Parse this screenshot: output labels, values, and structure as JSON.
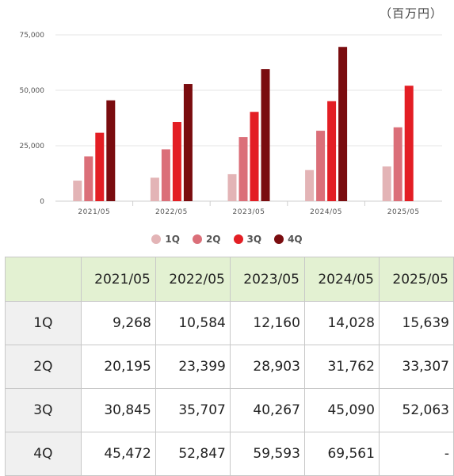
{
  "unit_label": "（百万円）",
  "colors": {
    "1Q": "#e3b4b6",
    "2Q": "#db6f79",
    "3Q": "#e31e24",
    "4Q": "#7a0c0f"
  },
  "chart_data": {
    "type": "bar",
    "categories": [
      "2021/05",
      "2022/05",
      "2023/05",
      "2024/05",
      "2025/05"
    ],
    "series": [
      {
        "name": "1Q",
        "values": [
          9268,
          10584,
          12160,
          14028,
          15639
        ]
      },
      {
        "name": "2Q",
        "values": [
          20195,
          23399,
          28903,
          31762,
          33307
        ]
      },
      {
        "name": "3Q",
        "values": [
          30845,
          35707,
          40267,
          45090,
          52063
        ]
      },
      {
        "name": "4Q",
        "values": [
          45472,
          52847,
          59593,
          69561,
          null
        ]
      }
    ],
    "ylim": [
      0,
      75000
    ],
    "yticks": [
      0,
      25000,
      50000,
      75000
    ],
    "ytick_labels": [
      "0",
      "25,000",
      "50,000",
      "75,000"
    ],
    "grid": true,
    "legend_position": "bottom"
  },
  "table": {
    "header": [
      "2021/05",
      "2022/05",
      "2023/05",
      "2024/05",
      "2025/05"
    ],
    "rows": [
      {
        "label": "1Q",
        "cells": [
          "9,268",
          "10,584",
          "12,160",
          "14,028",
          "15,639"
        ]
      },
      {
        "label": "2Q",
        "cells": [
          "20,195",
          "23,399",
          "28,903",
          "31,762",
          "33,307"
        ]
      },
      {
        "label": "3Q",
        "cells": [
          "30,845",
          "35,707",
          "40,267",
          "45,090",
          "52,063"
        ]
      },
      {
        "label": "4Q",
        "cells": [
          "45,472",
          "52,847",
          "59,593",
          "69,561",
          "-"
        ]
      }
    ]
  }
}
